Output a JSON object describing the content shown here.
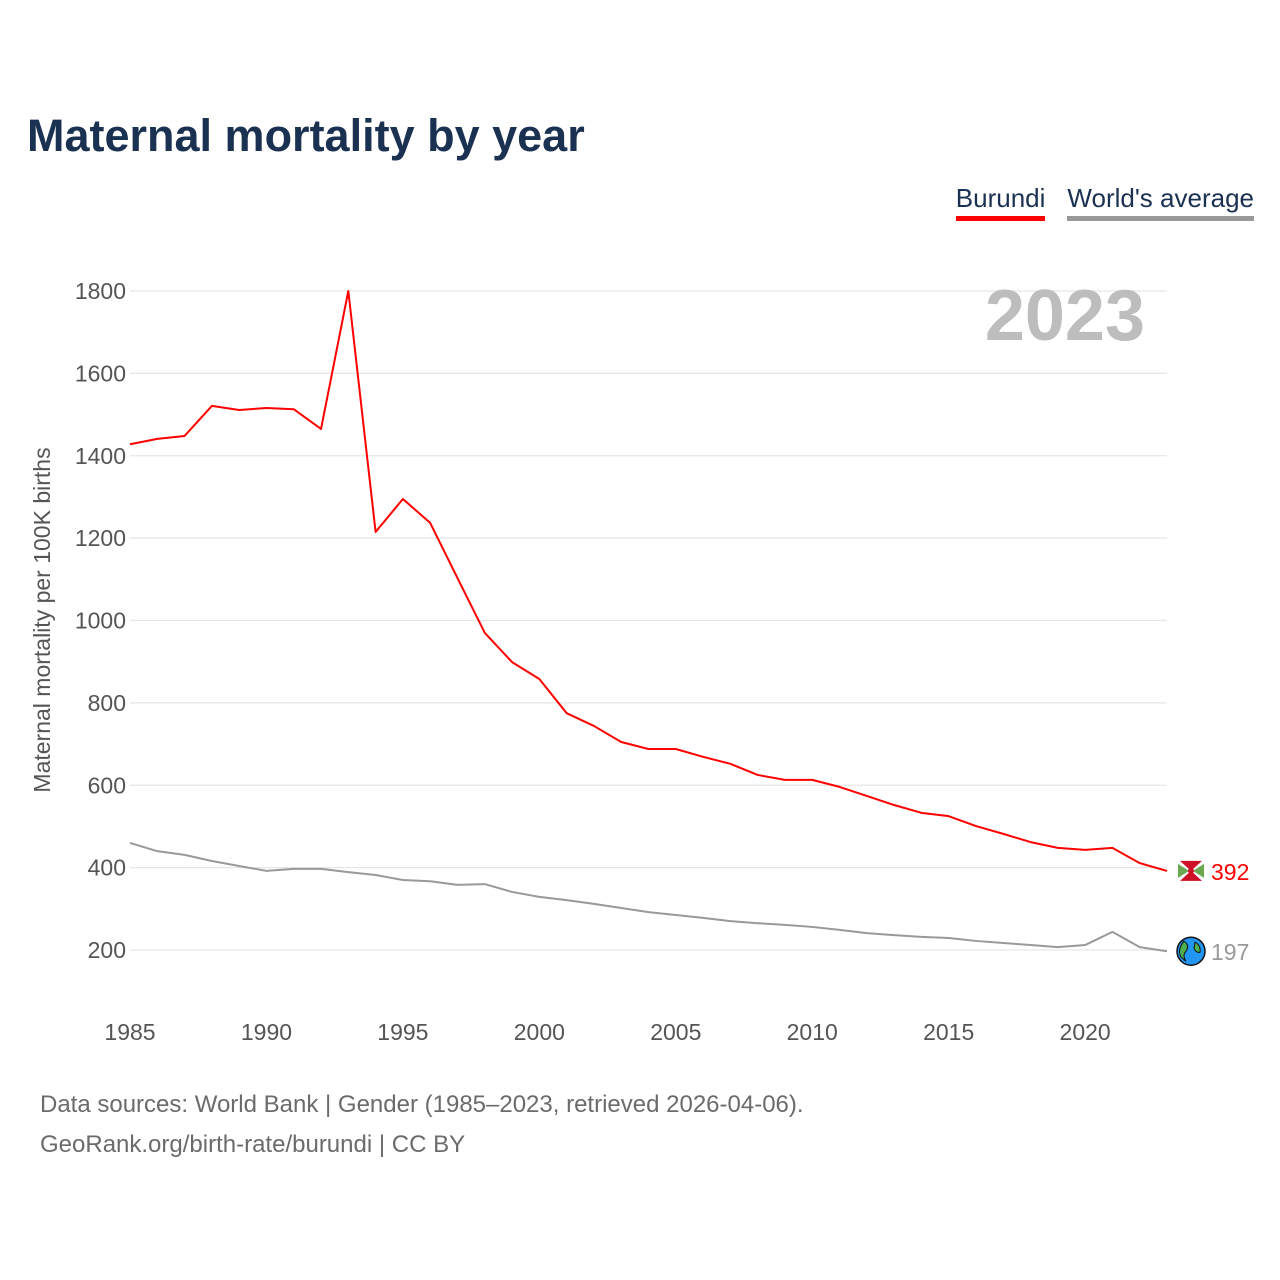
{
  "chart_data": {
    "type": "line",
    "title": "Maternal mortality by year",
    "ylabel": "Maternal mortality per 100K births",
    "xlabel": "",
    "xlim": [
      1985,
      2023
    ],
    "ylim": [
      200,
      1800
    ],
    "yticks": [
      200,
      400,
      600,
      800,
      1000,
      1200,
      1400,
      1600,
      1800
    ],
    "xticks": [
      1985,
      1990,
      1995,
      2000,
      2005,
      2010,
      2015,
      2020
    ],
    "grid": true,
    "legend_position": "top-right",
    "year_label": "2023",
    "x": [
      1985,
      1986,
      1987,
      1988,
      1989,
      1990,
      1991,
      1992,
      1993,
      1994,
      1995,
      1996,
      1997,
      1998,
      1999,
      2000,
      2001,
      2002,
      2003,
      2004,
      2005,
      2006,
      2007,
      2008,
      2009,
      2010,
      2011,
      2012,
      2013,
      2014,
      2015,
      2016,
      2017,
      2018,
      2019,
      2020,
      2021,
      2022,
      2023
    ],
    "series": [
      {
        "name": "Burundi",
        "color": "#ff0000",
        "end_label": "392",
        "values": [
          1428,
          1441,
          1448,
          1521,
          1511,
          1516,
          1513,
          1465,
          1800,
          1215,
          1295,
          1237,
          1103,
          970,
          899,
          858,
          775,
          744,
          705,
          688,
          688,
          669,
          652,
          625,
          613,
          613,
          596,
          574,
          552,
          533,
          525,
          501,
          482,
          462,
          448,
          443,
          448,
          411,
          392
        ]
      },
      {
        "name": "World's average",
        "color": "#999999",
        "end_label": "197",
        "values": [
          460,
          440,
          431,
          416,
          404,
          392,
          397,
          397,
          389,
          382,
          370,
          367,
          358,
          360,
          341,
          329,
          321,
          312,
          302,
          292,
          285,
          278,
          270,
          265,
          261,
          256,
          249,
          241,
          236,
          232,
          229,
          222,
          217,
          212,
          207,
          212,
          244,
          207,
          197
        ]
      }
    ]
  },
  "footer": {
    "line1": "Data sources: World Bank | Gender (1985–2023, retrieved 2026-04-06).",
    "line2": "GeoRank.org/birth-rate/burundi | CC BY"
  }
}
